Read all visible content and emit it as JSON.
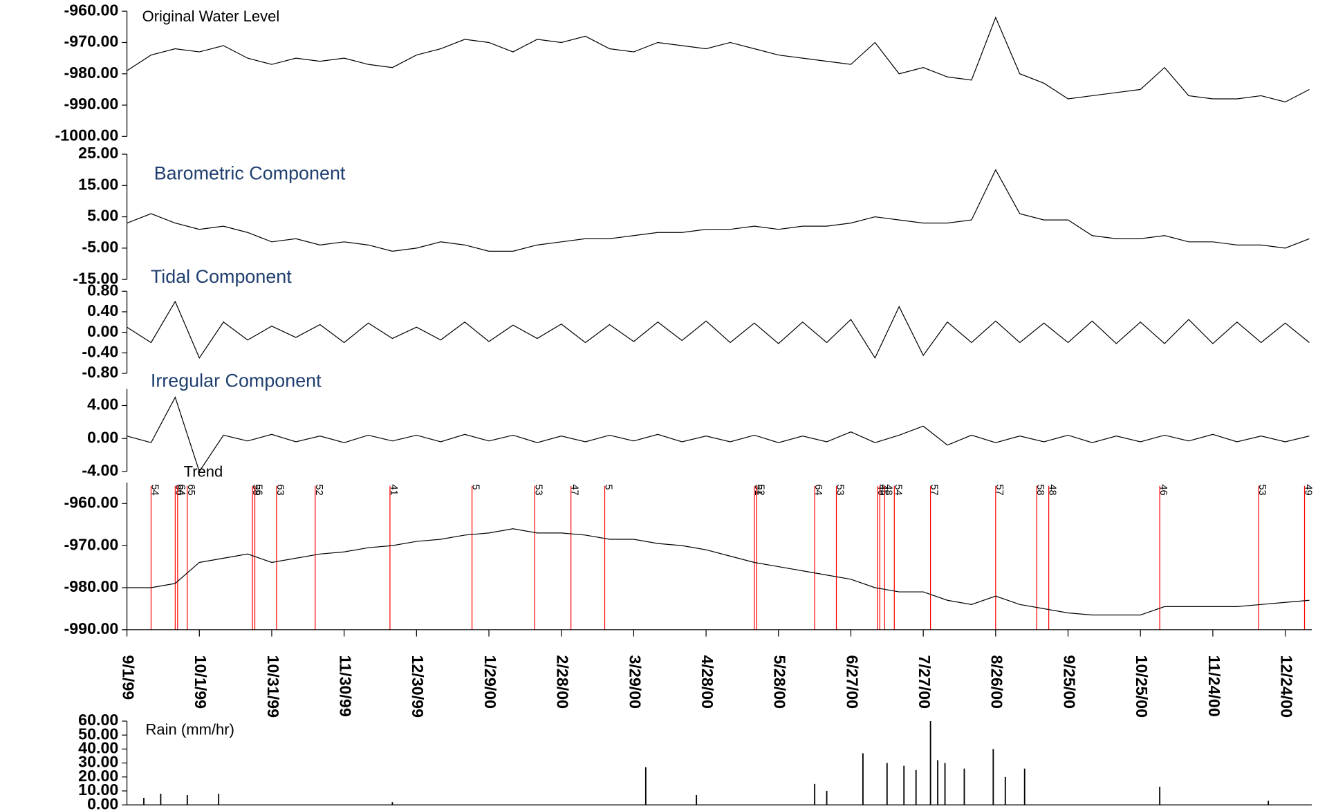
{
  "chart_data": [
    {
      "type": "line",
      "title": "Original Water Level",
      "color": "#000000",
      "x": [
        "1999-09-01",
        "1999-09-11",
        "1999-09-21",
        "1999-10-01",
        "1999-10-11",
        "1999-10-21",
        "1999-10-31",
        "1999-11-10",
        "1999-11-20",
        "1999-11-30",
        "1999-12-10",
        "1999-12-20",
        "1999-12-30",
        "2000-01-09",
        "2000-01-19",
        "2000-01-29",
        "2000-02-08",
        "2000-02-18",
        "2000-02-28",
        "2000-03-09",
        "2000-03-19",
        "2000-03-29",
        "2000-04-08",
        "2000-04-18",
        "2000-04-28",
        "2000-05-08",
        "2000-05-18",
        "2000-05-28",
        "2000-06-07",
        "2000-06-17",
        "2000-06-27",
        "2000-07-07",
        "2000-07-17",
        "2000-07-27",
        "2000-08-06",
        "2000-08-16",
        "2000-08-26",
        "2000-09-05",
        "2000-09-15",
        "2000-09-25",
        "2000-10-05",
        "2000-10-15",
        "2000-10-25",
        "2000-11-04",
        "2000-11-14",
        "2000-11-24",
        "2000-12-04",
        "2000-12-14",
        "2000-12-24",
        "2001-01-03"
      ],
      "values": [
        -979,
        -974,
        -972,
        -973,
        -971,
        -975,
        -977,
        -975,
        -976,
        -975,
        -977,
        -978,
        -974,
        -972,
        -969,
        -970,
        -973,
        -969,
        -970,
        -968,
        -972,
        -973,
        -970,
        -971,
        -972,
        -970,
        -972,
        -974,
        -975,
        -976,
        -977,
        -970,
        -980,
        -978,
        -981,
        -982,
        -962,
        -980,
        -983,
        -988,
        -987,
        -986,
        -985,
        -978,
        -987,
        -988,
        -988,
        -987,
        -989,
        -985
      ],
      "ylim": [
        -1000,
        -960
      ],
      "yticks": [
        {
          "value": -1000,
          "label": "-1000.00"
        },
        {
          "value": -990,
          "label": "-990.00"
        },
        {
          "value": -980,
          "label": "-980.00"
        },
        {
          "value": -970,
          "label": "-970.00"
        },
        {
          "value": -960,
          "label": "-960.00"
        }
      ]
    },
    {
      "type": "line",
      "title": "Barometric Component",
      "color": "#000000",
      "x": [
        "1999-09-01",
        "1999-09-11",
        "1999-09-21",
        "1999-10-01",
        "1999-10-11",
        "1999-10-21",
        "1999-10-31",
        "1999-11-10",
        "1999-11-20",
        "1999-11-30",
        "1999-12-10",
        "1999-12-20",
        "1999-12-30",
        "2000-01-09",
        "2000-01-19",
        "2000-01-29",
        "2000-02-08",
        "2000-02-18",
        "2000-02-28",
        "2000-03-09",
        "2000-03-19",
        "2000-03-29",
        "2000-04-08",
        "2000-04-18",
        "2000-04-28",
        "2000-05-08",
        "2000-05-18",
        "2000-05-28",
        "2000-06-07",
        "2000-06-17",
        "2000-06-27",
        "2000-07-07",
        "2000-07-17",
        "2000-07-27",
        "2000-08-06",
        "2000-08-16",
        "2000-08-26",
        "2000-09-05",
        "2000-09-15",
        "2000-09-25",
        "2000-10-05",
        "2000-10-15",
        "2000-10-25",
        "2000-11-04",
        "2000-11-14",
        "2000-11-24",
        "2000-12-04",
        "2000-12-14",
        "2000-12-24",
        "2001-01-03"
      ],
      "values": [
        3,
        6,
        3,
        1,
        2,
        0,
        -3,
        -2,
        -4,
        -3,
        -4,
        -6,
        -5,
        -3,
        -4,
        -6,
        -6,
        -4,
        -3,
        -2,
        -2,
        -1,
        0,
        0,
        1,
        1,
        2,
        1,
        2,
        2,
        3,
        5,
        4,
        3,
        3,
        4,
        20,
        6,
        4,
        4,
        -1,
        -2,
        -2,
        -1,
        -3,
        -3,
        -4,
        -4,
        -5,
        -2
      ],
      "ylim": [
        -15,
        25
      ],
      "yticks": [
        {
          "value": -15,
          "label": "-15.00"
        },
        {
          "value": -5,
          "label": "-5.00"
        },
        {
          "value": 5,
          "label": "5.00"
        },
        {
          "value": 15,
          "label": "15.00"
        },
        {
          "value": 25,
          "label": "25.00"
        }
      ]
    },
    {
      "type": "line",
      "title": "Tidal Component",
      "color": "#000000",
      "x": [
        "1999-09-01",
        "1999-09-11",
        "1999-09-21",
        "1999-10-01",
        "1999-10-11",
        "1999-10-21",
        "1999-10-31",
        "1999-11-10",
        "1999-11-20",
        "1999-11-30",
        "1999-12-10",
        "1999-12-20",
        "1999-12-30",
        "2000-01-09",
        "2000-01-19",
        "2000-01-29",
        "2000-02-08",
        "2000-02-18",
        "2000-02-28",
        "2000-03-09",
        "2000-03-19",
        "2000-03-29",
        "2000-04-08",
        "2000-04-18",
        "2000-04-28",
        "2000-05-08",
        "2000-05-18",
        "2000-05-28",
        "2000-06-07",
        "2000-06-17",
        "2000-06-27",
        "2000-07-07",
        "2000-07-17",
        "2000-07-27",
        "2000-08-06",
        "2000-08-16",
        "2000-08-26",
        "2000-09-05",
        "2000-09-15",
        "2000-09-25",
        "2000-10-05",
        "2000-10-15",
        "2000-10-25",
        "2000-11-04",
        "2000-11-14",
        "2000-11-24",
        "2000-12-04",
        "2000-12-14",
        "2000-12-24",
        "2001-01-03"
      ],
      "values": [
        0.1,
        -0.2,
        0.6,
        -0.5,
        0.2,
        -0.15,
        0.12,
        -0.1,
        0.15,
        -0.2,
        0.18,
        -0.12,
        0.1,
        -0.15,
        0.2,
        -0.18,
        0.14,
        -0.12,
        0.16,
        -0.2,
        0.15,
        -0.18,
        0.2,
        -0.16,
        0.22,
        -0.2,
        0.18,
        -0.22,
        0.2,
        -0.2,
        0.25,
        -0.5,
        0.5,
        -0.45,
        0.2,
        -0.2,
        0.22,
        -0.2,
        0.18,
        -0.2,
        0.22,
        -0.22,
        0.2,
        -0.22,
        0.25,
        -0.22,
        0.2,
        -0.2,
        0.18,
        -0.2
      ],
      "ylim": [
        -0.8,
        0.8
      ],
      "yticks": [
        {
          "value": -0.8,
          "label": "-0.80"
        },
        {
          "value": -0.4,
          "label": "-0.40"
        },
        {
          "value": 0,
          "label": "0.00"
        },
        {
          "value": 0.4,
          "label": "0.40"
        },
        {
          "value": 0.8,
          "label": "0.80"
        }
      ]
    },
    {
      "type": "line",
      "title": "Irregular Component",
      "color": "#000000",
      "x": [
        "1999-09-01",
        "1999-09-11",
        "1999-09-21",
        "1999-10-01",
        "1999-10-11",
        "1999-10-21",
        "1999-10-31",
        "1999-11-10",
        "1999-11-20",
        "1999-11-30",
        "1999-12-10",
        "1999-12-20",
        "1999-12-30",
        "2000-01-09",
        "2000-01-19",
        "2000-01-29",
        "2000-02-08",
        "2000-02-18",
        "2000-02-28",
        "2000-03-09",
        "2000-03-19",
        "2000-03-29",
        "2000-04-08",
        "2000-04-18",
        "2000-04-28",
        "2000-05-08",
        "2000-05-18",
        "2000-05-28",
        "2000-06-07",
        "2000-06-17",
        "2000-06-27",
        "2000-07-07",
        "2000-07-17",
        "2000-07-27",
        "2000-08-06",
        "2000-08-16",
        "2000-08-26",
        "2000-09-05",
        "2000-09-15",
        "2000-09-25",
        "2000-10-05",
        "2000-10-15",
        "2000-10-25",
        "2000-11-04",
        "2000-11-14",
        "2000-11-24",
        "2000-12-04",
        "2000-12-14",
        "2000-12-24",
        "2001-01-03"
      ],
      "values": [
        0.3,
        -0.5,
        5,
        -4,
        0.4,
        -0.3,
        0.5,
        -0.4,
        0.3,
        -0.5,
        0.4,
        -0.3,
        0.4,
        -0.4,
        0.5,
        -0.3,
        0.4,
        -0.5,
        0.3,
        -0.4,
        0.4,
        -0.3,
        0.5,
        -0.4,
        0.3,
        -0.4,
        0.4,
        -0.5,
        0.3,
        -0.4,
        0.8,
        -0.5,
        0.4,
        1.5,
        -0.8,
        0.4,
        -0.5,
        0.3,
        -0.4,
        0.4,
        -0.5,
        0.3,
        -0.4,
        0.4,
        -0.3,
        0.5,
        -0.4,
        0.3,
        -0.4,
        0.3
      ],
      "ylim": [
        -4,
        6
      ],
      "yticks": [
        {
          "value": -4,
          "label": "-4.00"
        },
        {
          "value": 0,
          "label": "0.00"
        },
        {
          "value": 4,
          "label": "4.00"
        }
      ]
    },
    {
      "type": "line",
      "title": "Trend",
      "color": "#000000",
      "x": [
        "1999-09-01",
        "1999-09-11",
        "1999-09-21",
        "1999-10-01",
        "1999-10-11",
        "1999-10-21",
        "1999-10-31",
        "1999-11-10",
        "1999-11-20",
        "1999-11-30",
        "1999-12-10",
        "1999-12-20",
        "1999-12-30",
        "2000-01-09",
        "2000-01-19",
        "2000-01-29",
        "2000-02-08",
        "2000-02-18",
        "2000-02-28",
        "2000-03-09",
        "2000-03-19",
        "2000-03-29",
        "2000-04-08",
        "2000-04-18",
        "2000-04-28",
        "2000-05-08",
        "2000-05-18",
        "2000-05-28",
        "2000-06-07",
        "2000-06-17",
        "2000-06-27",
        "2000-07-07",
        "2000-07-17",
        "2000-07-27",
        "2000-08-06",
        "2000-08-16",
        "2000-08-26",
        "2000-09-05",
        "2000-09-15",
        "2000-09-25",
        "2000-10-05",
        "2000-10-15",
        "2000-10-25",
        "2000-11-04",
        "2000-11-14",
        "2000-11-24",
        "2000-12-04",
        "2000-12-14",
        "2000-12-24",
        "2001-01-03"
      ],
      "values": [
        -980,
        -980,
        -979,
        -974,
        -973,
        -972,
        -974,
        -973,
        -972,
        -971.5,
        -970.5,
        -970,
        -969,
        -968.5,
        -967.5,
        -967,
        -966,
        -967,
        -967,
        -967.5,
        -968.5,
        -968.5,
        -969.5,
        -970,
        -971,
        -972.5,
        -974,
        -975,
        -976,
        -977,
        -978,
        -980,
        -981,
        -981,
        -983,
        -984,
        -982,
        -984,
        -985,
        -986,
        -986.5,
        -986.5,
        -986.5,
        -984.5,
        -984.5,
        -984.5,
        -984.5,
        -984,
        -983.5,
        -983
      ],
      "ylim": [
        -990,
        -955
      ],
      "yticks": [
        {
          "value": -990,
          "label": "-990.00"
        },
        {
          "value": -980,
          "label": "-980.00"
        },
        {
          "value": -970,
          "label": "-970.00"
        },
        {
          "value": -960,
          "label": "-960.00"
        }
      ],
      "xlim": [
        "1999-09-01",
        "2001-01-04"
      ],
      "xticks": [
        {
          "value": "1999-09-01",
          "label": "9/1/99"
        },
        {
          "value": "1999-10-01",
          "label": "10/1/99"
        },
        {
          "value": "1999-10-31",
          "label": "10/31/99"
        },
        {
          "value": "1999-11-30",
          "label": "11/30/99"
        },
        {
          "value": "1999-12-30",
          "label": "12/30/99"
        },
        {
          "value": "2000-01-29",
          "label": "1/29/00"
        },
        {
          "value": "2000-02-28",
          "label": "2/28/00"
        },
        {
          "value": "2000-03-29",
          "label": "3/29/00"
        },
        {
          "value": "2000-04-28",
          "label": "4/28/00"
        },
        {
          "value": "2000-05-28",
          "label": "5/28/00"
        },
        {
          "value": "2000-06-27",
          "label": "6/27/00"
        },
        {
          "value": "2000-07-27",
          "label": "7/27/00"
        },
        {
          "value": "2000-08-26",
          "label": "8/26/00"
        },
        {
          "value": "2000-09-25",
          "label": "9/25/00"
        },
        {
          "value": "2000-10-25",
          "label": "10/25/00"
        },
        {
          "value": "2000-11-24",
          "label": "11/24/00"
        },
        {
          "value": "2000-12-24",
          "label": "12/24/00"
        }
      ],
      "event_color": "#ff0000",
      "events": [
        {
          "x": "1999-09-11",
          "label": "54"
        },
        {
          "x": "1999-09-21",
          "label": "66"
        },
        {
          "x": "1999-09-22",
          "label": "64"
        },
        {
          "x": "1999-09-26",
          "label": "65"
        },
        {
          "x": "1999-10-23",
          "label": "58"
        },
        {
          "x": "1999-10-24",
          "label": "56"
        },
        {
          "x": "1999-11-02",
          "label": "63"
        },
        {
          "x": "1999-11-18",
          "label": "52"
        },
        {
          "x": "1999-12-19",
          "label": "41"
        },
        {
          "x": "2000-01-22",
          "label": "5"
        },
        {
          "x": "2000-02-17",
          "label": "53"
        },
        {
          "x": "2000-03-03",
          "label": "47"
        },
        {
          "x": "2000-03-17",
          "label": "5"
        },
        {
          "x": "2000-05-18",
          "label": "51"
        },
        {
          "x": "2000-05-19",
          "label": "52"
        },
        {
          "x": "2000-06-12",
          "label": "64"
        },
        {
          "x": "2000-06-21",
          "label": "53"
        },
        {
          "x": "2000-07-08",
          "label": "46"
        },
        {
          "x": "2000-07-09",
          "label": "45"
        },
        {
          "x": "2000-07-11",
          "label": "48"
        },
        {
          "x": "2000-07-15",
          "label": "54"
        },
        {
          "x": "2000-07-30",
          "label": "57"
        },
        {
          "x": "2000-08-26",
          "label": "57"
        },
        {
          "x": "2000-09-12",
          "label": "58"
        },
        {
          "x": "2000-09-17",
          "label": "48"
        },
        {
          "x": "2000-11-02",
          "label": "46"
        },
        {
          "x": "2000-12-13",
          "label": "53"
        },
        {
          "x": "2001-01-01",
          "label": "49"
        }
      ]
    },
    {
      "type": "bar",
      "title": "Rain (mm/hr)",
      "color": "#000000",
      "x": [
        "1999-09-08",
        "1999-09-15",
        "1999-09-26",
        "1999-10-09",
        "1999-12-20",
        "2000-04-03",
        "2000-04-24",
        "2000-06-12",
        "2000-06-17",
        "2000-07-02",
        "2000-07-12",
        "2000-07-19",
        "2000-07-24",
        "2000-07-30",
        "2000-08-02",
        "2000-08-05",
        "2000-08-13",
        "2000-08-25",
        "2000-08-30",
        "2000-09-07",
        "2000-11-02",
        "2000-12-17"
      ],
      "values": [
        5,
        8,
        7,
        8,
        2,
        27,
        7,
        15,
        10,
        37,
        30,
        28,
        25,
        60,
        32,
        30,
        26,
        40,
        20,
        26,
        13,
        3
      ],
      "ylim": [
        0,
        60
      ],
      "yticks": [
        {
          "value": 0,
          "label": "0.00"
        },
        {
          "value": 10,
          "label": "10.00"
        },
        {
          "value": 20,
          "label": "20.00"
        },
        {
          "value": 30,
          "label": "30.00"
        },
        {
          "value": 40,
          "label": "40.00"
        },
        {
          "value": 50,
          "label": "50.00"
        },
        {
          "value": 60,
          "label": "60.00"
        }
      ]
    }
  ]
}
